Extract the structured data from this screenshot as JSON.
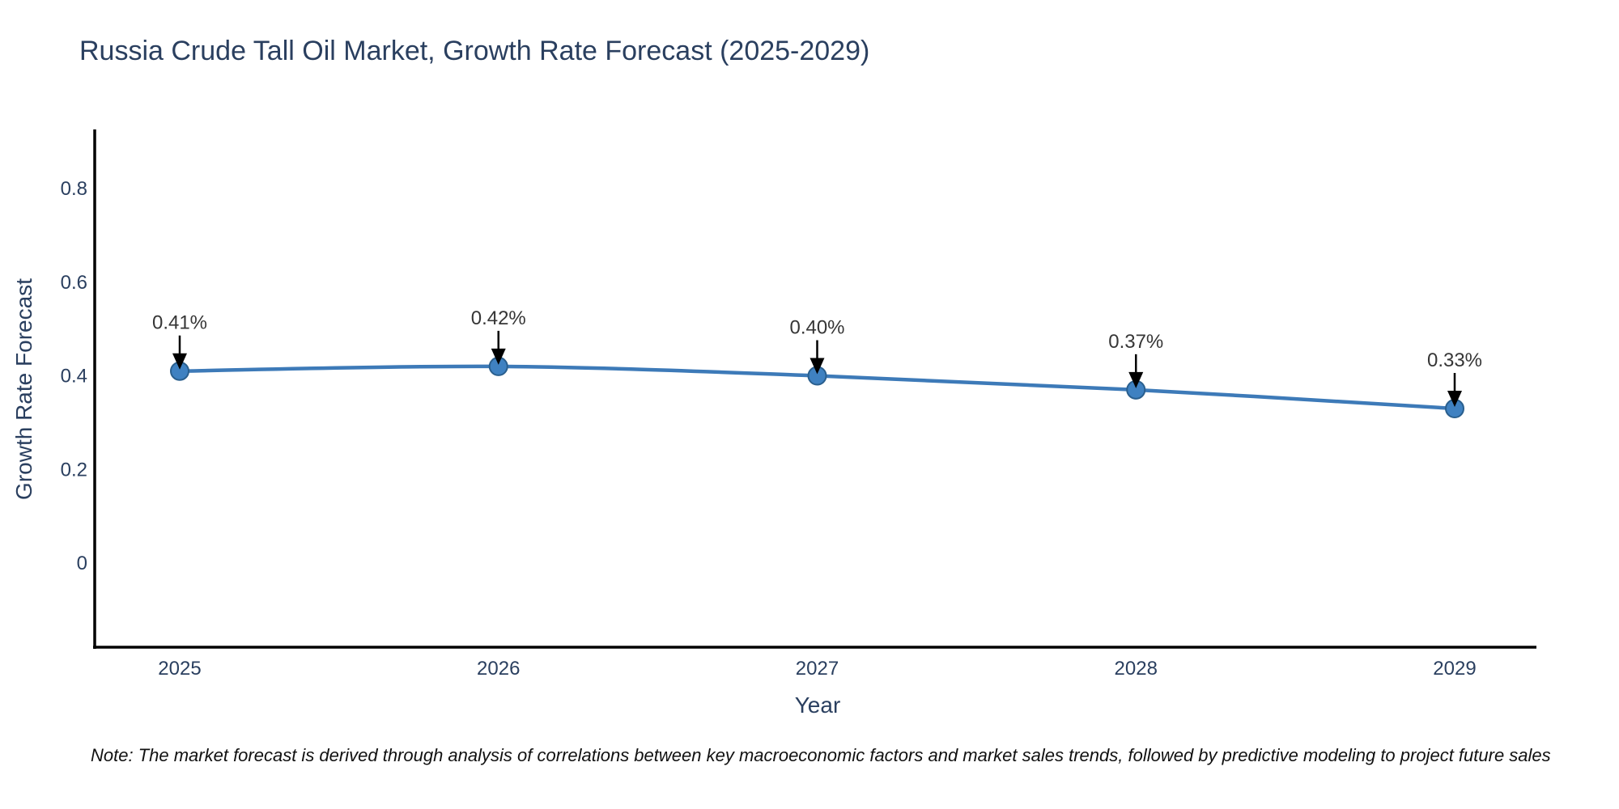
{
  "chart": {
    "title": "Russia Crude Tall Oil Market, Growth Rate Forecast (2025-2029)",
    "xlabel": "Year",
    "ylabel": "Growth Rate Forecast",
    "note": "Note: The market forecast is derived through analysis of correlations between key macroeconomic factors and market sales trends, followed by predictive modeling to project future sales"
  },
  "chart_data": {
    "type": "line",
    "title": "Russia Crude Tall Oil Market, Growth Rate Forecast (2025-2029)",
    "xlabel": "Year",
    "ylabel": "Growth Rate Forecast",
    "x": [
      2025,
      2026,
      2027,
      2028,
      2029
    ],
    "values": [
      0.41,
      0.42,
      0.4,
      0.37,
      0.33
    ],
    "point_labels": [
      "0.41%",
      "0.42%",
      "0.40%",
      "0.37%",
      "0.33%"
    ],
    "yticks": [
      0,
      0.2,
      0.4,
      0.6,
      0.8
    ],
    "ytick_labels": [
      "0",
      "0.2",
      "0.4",
      "0.6",
      "0.8"
    ],
    "ylim": [
      -0.18,
      0.93
    ],
    "grid": false,
    "legend": "none",
    "curve": "spline",
    "colors": {
      "line": "#3d7ab8",
      "marker_fill": "#3f81c1",
      "marker_edge": "#2a5f8e",
      "annotation_text": "#363636",
      "annotation_arrow": "#000000",
      "axis_line": "#000000",
      "tick_text": "#2a3f5f",
      "title_text": "#2a3f5f"
    }
  }
}
